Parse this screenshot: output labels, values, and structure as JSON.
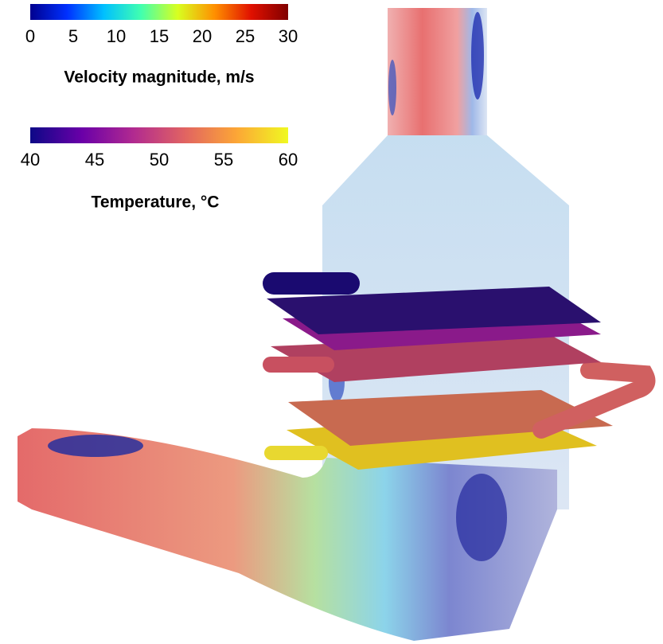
{
  "colorbars": [
    {
      "label": "Velocity magnitude, m/s",
      "range": [
        0,
        30
      ],
      "ticks": [
        0,
        5,
        10,
        15,
        20,
        25,
        30
      ],
      "colors": [
        "#00008f",
        "#0030ff",
        "#00c0ff",
        "#40ffb0",
        "#d8ff20",
        "#ff9000",
        "#e01000",
        "#800000"
      ]
    },
    {
      "label": "Temperature, °C",
      "range": [
        40,
        60
      ],
      "ticks": [
        40,
        45,
        50,
        55,
        60
      ],
      "colors": [
        "#0d0887",
        "#6a00a8",
        "#b12a90",
        "#e16462",
        "#fca636",
        "#f0f921"
      ]
    }
  ]
}
